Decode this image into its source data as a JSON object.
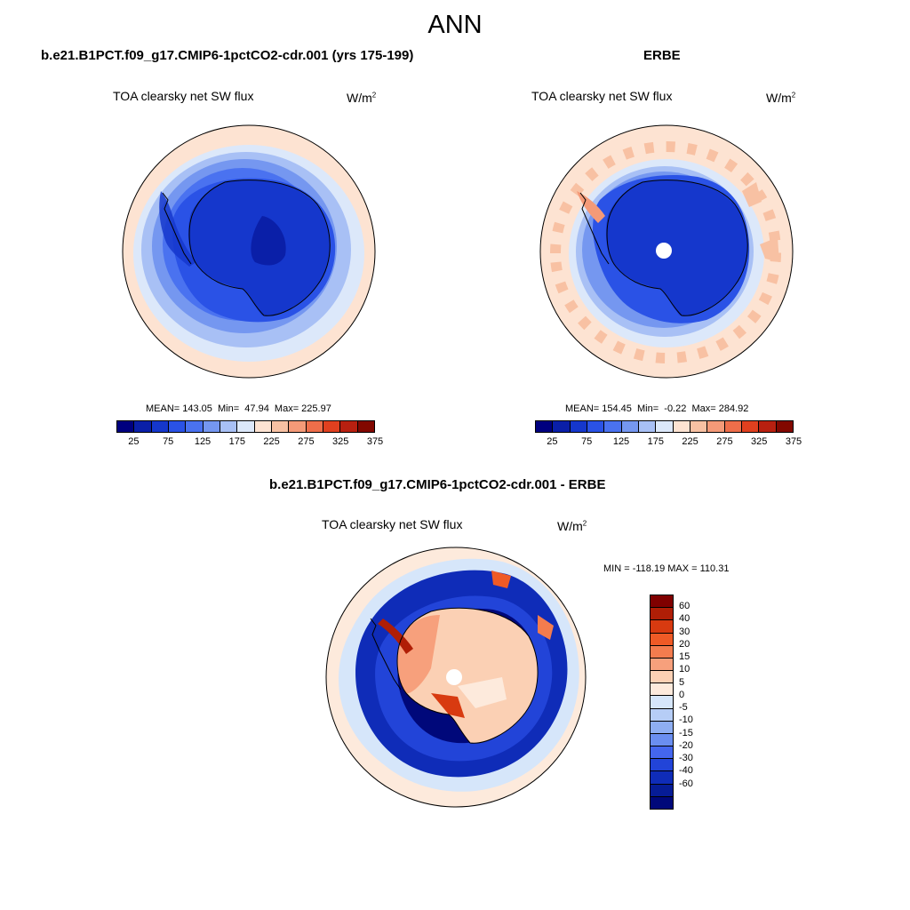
{
  "figure": {
    "title": "ANN"
  },
  "panels": [
    {
      "case_title": "b.e21.B1PCT.f09_g17.CMIP6-1pctCO2-cdr.001 (yrs 175-199)",
      "variable_label": "TOA clearsky net SW flux",
      "units_base": "W/m",
      "units_exp": "2",
      "stats_text": "MEAN= 143.05  Min=  47.94  Max= 225.97",
      "colorbar_ticks": [
        "25",
        "75",
        "125",
        "175",
        "225",
        "275",
        "325",
        "375"
      ]
    },
    {
      "case_title": "ERBE",
      "variable_label": "TOA clearsky net SW flux",
      "units_base": "W/m",
      "units_exp": "2",
      "stats_text": "MEAN= 154.45  Min=  -0.22  Max= 284.92",
      "colorbar_ticks": [
        "25",
        "75",
        "125",
        "175",
        "225",
        "275",
        "325",
        "375"
      ]
    },
    {
      "case_title": "b.e21.B1PCT.f09_g17.CMIP6-1pctCO2-cdr.001 - ERBE",
      "variable_label": "TOA clearsky net SW flux",
      "units_base": "W/m",
      "units_exp": "2",
      "stats_text": "MIN = -118.19 MAX = 110.31",
      "colorbar_ticks": [
        "60",
        "40",
        "30",
        "20",
        "15",
        "10",
        "5",
        "0",
        "-5",
        "-10",
        "-15",
        "-20",
        "-30",
        "-40",
        "-60"
      ]
    }
  ],
  "colors": {
    "abs_scale": [
      "#00007f",
      "#0a1fa8",
      "#1537cc",
      "#2a52e6",
      "#4a72f0",
      "#7597f0",
      "#a8c0f5",
      "#dce8fa",
      "#fde3d2",
      "#f8c1a3",
      "#f49a78",
      "#ee6e4a",
      "#e0401f",
      "#b82010",
      "#820800"
    ],
    "diff_scale": [
      "#800000",
      "#b01e06",
      "#d83a10",
      "#ef5a26",
      "#f47c4e",
      "#f7a07c",
      "#fbd0b4",
      "#fdeadc",
      "#d6e6fa",
      "#b6cdf6",
      "#8eaef2",
      "#6a8ef0",
      "#4466ee",
      "#2244d8",
      "#0f2cb8",
      "#061c96",
      "#00087a"
    ],
    "ocean_far": "#fde3d2",
    "coastline": "#000000"
  }
}
